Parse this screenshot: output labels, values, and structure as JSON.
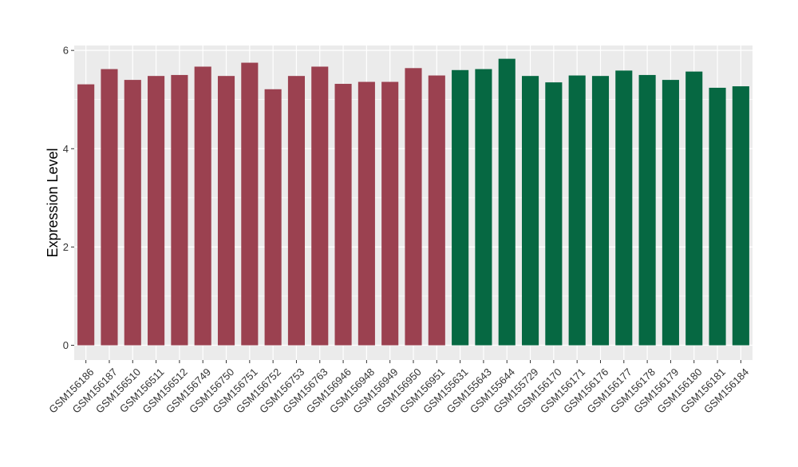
{
  "chart_data": {
    "type": "bar",
    "title": "",
    "xlabel": "",
    "ylabel": "Expression Level",
    "ylim": [
      -0.3,
      6.1
    ],
    "yticks": [
      0,
      2,
      4,
      6
    ],
    "grid": true,
    "legend": "none",
    "categories": [
      "GSM156186",
      "GSM156187",
      "GSM156510",
      "GSM156511",
      "GSM156512",
      "GSM156749",
      "GSM156750",
      "GSM156751",
      "GSM156752",
      "GSM156753",
      "GSM156763",
      "GSM156946",
      "GSM156948",
      "GSM156949",
      "GSM156950",
      "GSM156951",
      "GSM155631",
      "GSM155643",
      "GSM155644",
      "GSM155729",
      "GSM156170",
      "GSM156171",
      "GSM156176",
      "GSM156177",
      "GSM156178",
      "GSM156179",
      "GSM156180",
      "GSM156181",
      "GSM156184"
    ],
    "values": [
      5.31,
      5.62,
      5.4,
      5.48,
      5.5,
      5.67,
      5.48,
      5.75,
      5.21,
      5.48,
      5.67,
      5.32,
      5.36,
      5.36,
      5.64,
      5.49,
      5.6,
      5.62,
      5.83,
      5.48,
      5.35,
      5.49,
      5.48,
      5.59,
      5.5,
      5.4,
      5.57,
      5.24,
      5.27
    ],
    "groups": [
      0,
      0,
      0,
      0,
      0,
      0,
      0,
      0,
      0,
      0,
      0,
      0,
      0,
      0,
      0,
      0,
      1,
      1,
      1,
      1,
      1,
      1,
      1,
      1,
      1,
      1,
      1,
      1,
      1
    ],
    "group_colors": [
      "#9b4150",
      "#066842"
    ],
    "panel_color": "#ebebeb",
    "grid_color": "#ffffff"
  }
}
